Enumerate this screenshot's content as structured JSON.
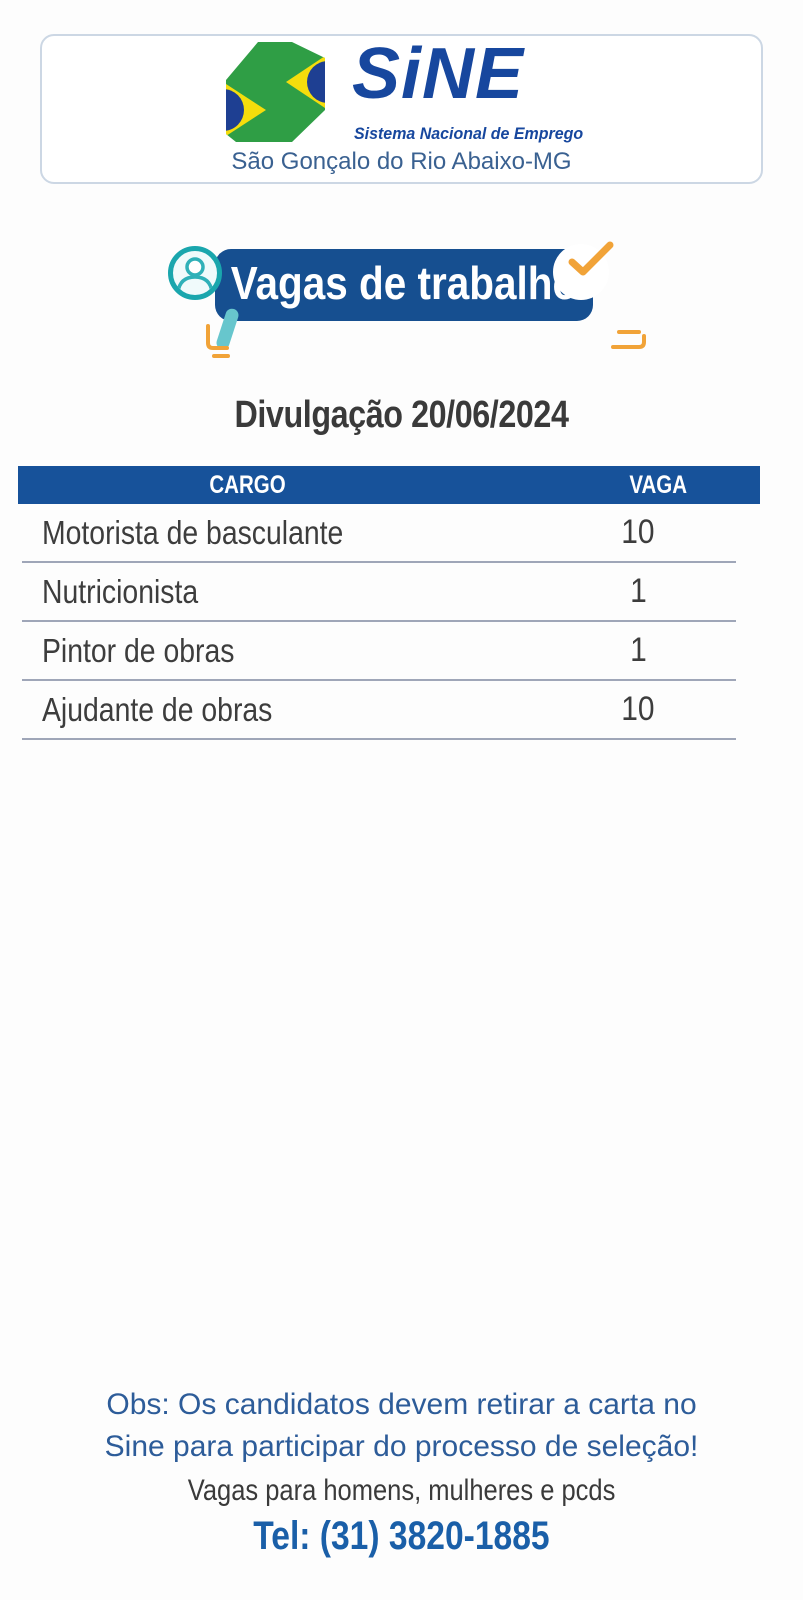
{
  "header": {
    "logo_text": "SiNE",
    "logo_subtitle": "Sistema Nacional de Emprego",
    "location": "São Gonçalo do Rio Abaixo-MG"
  },
  "banner": {
    "title": "Vagas de trabalho"
  },
  "announcement": {
    "date_label": "Divulgação 20/06/2024"
  },
  "jobs_table": {
    "columns": [
      "CARGO",
      "VAGA"
    ],
    "rows": [
      {
        "cargo": "Motorista de basculante",
        "vaga": "10"
      },
      {
        "cargo": "Nutricionista",
        "vaga": "1"
      },
      {
        "cargo": "Pintor de obras",
        "vaga": "1"
      },
      {
        "cargo": "Ajudante de obras",
        "vaga": "10"
      }
    ]
  },
  "footer": {
    "note_line1": "Obs: Os candidatos devem retirar a carta no",
    "note_line2": "Sine para participar do processo de seleção!",
    "audience": "Vagas para homens, mulheres e pcds",
    "phone": "Tel: (31) 3820-1885"
  },
  "icons": {
    "logo_flag": "brazil-flag-arrows-icon",
    "banner_left": "person-search-icon",
    "banner_right": "checkmark-icon"
  },
  "colors": {
    "banner_blue": "#164f90",
    "table_header_blue": "#17529a",
    "logo_navy": "#17479e",
    "flag_green": "#2f9e45",
    "flag_yellow": "#f5dd0c",
    "flag_blue": "#1e3f92",
    "teal": "#1aa6ad",
    "orange": "#f1a338",
    "note_blue": "#2d5c99",
    "phone_blue": "#1a5fa8",
    "row_divider": "#9fa6b8",
    "text_dark": "#3a3a3a"
  }
}
